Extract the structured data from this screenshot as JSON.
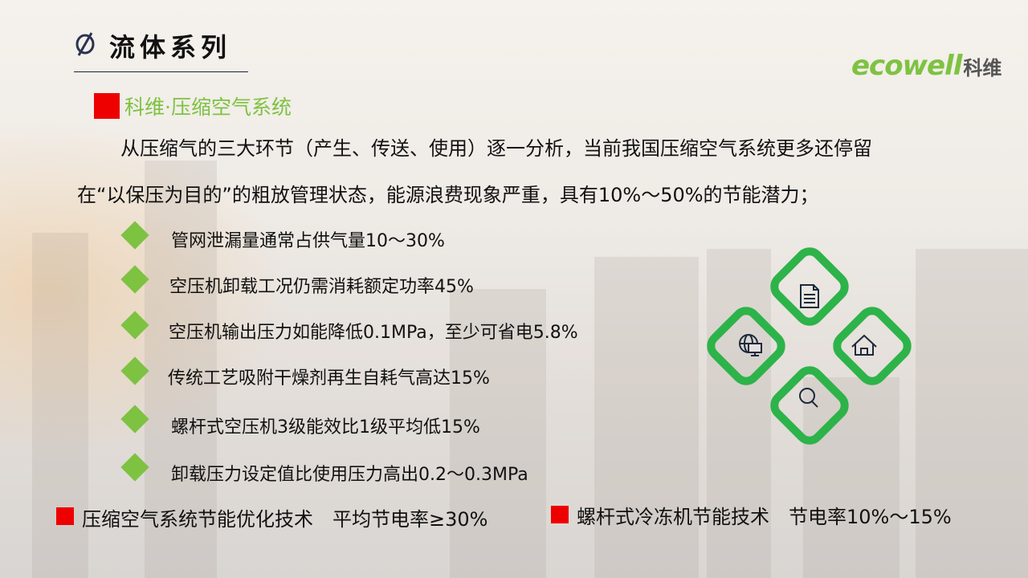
{
  "header": {
    "title": "流体系列",
    "logo_text_en": "ecowell",
    "logo_text_cn": "科维"
  },
  "section": {
    "subtitle": "科维·压缩空气系统",
    "paragraph_line1": "从压缩气的三大环节（产生、传送、使用）逐一分析，当前我国压缩空气系统更多还停留",
    "paragraph_line2": "在“以保压为目的”的粗放管理状态，能源浪费现象严重，具有10%～50%的节能潜力；",
    "bullets": [
      "管网泄漏量通常占供气量10～30%",
      "空压机卸载工况仍需消耗额定功率45%",
      "空压机输出压力如能降低0.1MPa，至少可省电5.8%",
      "传统工艺吸附干燥剂再生自耗气高达15%",
      "螺杆式空压机3级能效比1级平均低15%",
      "卸载压力设定值比使用压力高出0.2～0.3MPa"
    ]
  },
  "footer": {
    "item1": "压缩空气系统节能优化技术　平均节电率≥30%",
    "item2": "螺杆式冷冻机节能技术　节电率10%～15%"
  },
  "graphic": {
    "icons": [
      "document-icon",
      "globe-monitor-icon",
      "home-icon",
      "search-icon"
    ]
  },
  "colors": {
    "accent_green": "#7ec242",
    "diamond_green": "#2db34a",
    "marker_red": "#ee0000",
    "icon_navy": "#1a2a3c"
  }
}
